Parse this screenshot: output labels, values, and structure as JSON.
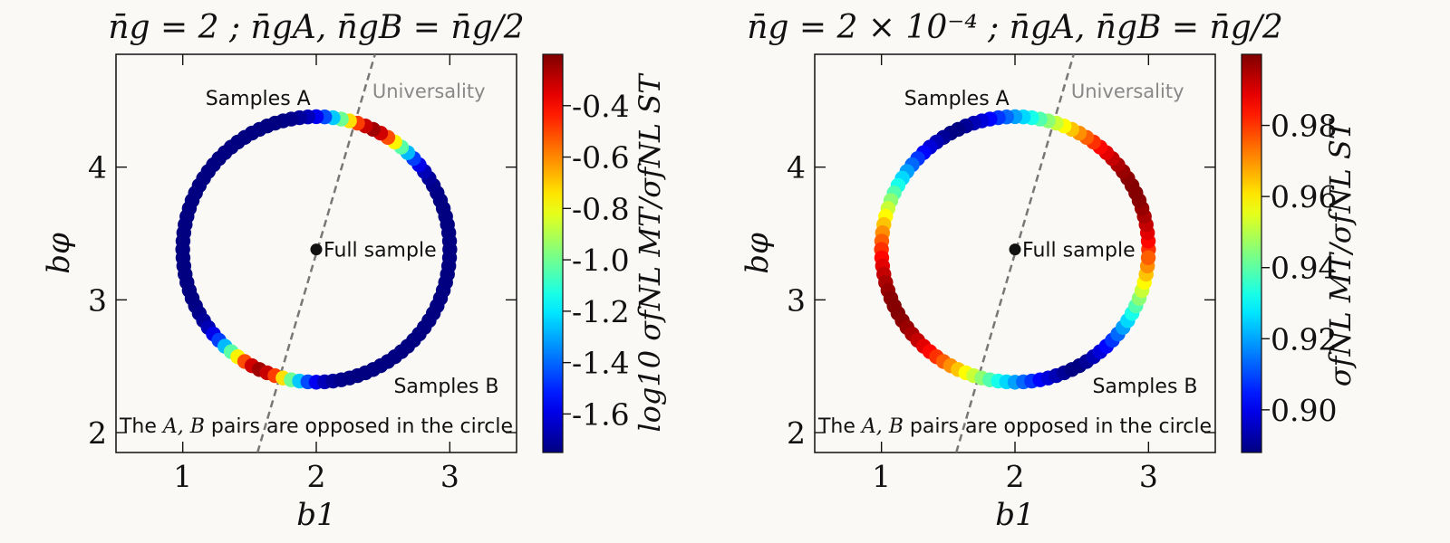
{
  "chart_data": [
    {
      "type": "scatter",
      "title": "n̄g = 2 ; n̄gA, n̄gB = n̄g/2",
      "xlabel": "b1",
      "ylabel": "bφ",
      "xlim": [
        0.5,
        3.5
      ],
      "ylim": [
        1.85,
        4.85
      ],
      "xticks": [
        1,
        2,
        3
      ],
      "yticks": [
        2,
        3,
        4
      ],
      "circle": {
        "center": [
          2.0,
          3.38
        ],
        "radius": 1.0,
        "n_points": 100
      },
      "universality_line": {
        "x": [
          1.56,
          2.44
        ],
        "y": [
          1.85,
          4.85
        ],
        "label": "Universality"
      },
      "full_sample": {
        "x": 2.0,
        "y": 3.38,
        "label": "Full sample"
      },
      "annotations": {
        "samples_a": "Samples A",
        "samples_b": "Samples B",
        "footnote_pre": "The ",
        "footnote_math": "A, B",
        "footnote_post": " pairs are opposed in the circle"
      },
      "colorbar": {
        "label": "log10 σfNL MT/σfNL ST",
        "min": -1.75,
        "max": -0.2,
        "ticks": [
          "-0.4",
          "-0.6",
          "-0.8",
          "-1.0",
          "-1.2",
          "-1.4",
          "-1.6"
        ],
        "tick_values": [
          -0.4,
          -0.6,
          -0.8,
          -1.0,
          -1.2,
          -1.4,
          -1.6
        ]
      },
      "color_profile": {
        "kind": "peak",
        "peak_angle_deg": 65,
        "base": -1.75,
        "peak": -0.25,
        "width_deg": 12
      }
    },
    {
      "type": "scatter",
      "title": "n̄g = 2 × 10⁻⁴ ; n̄gA, n̄gB = n̄g/2",
      "xlabel": "b1",
      "ylabel": "bφ",
      "xlim": [
        0.5,
        3.5
      ],
      "ylim": [
        1.85,
        4.85
      ],
      "xticks": [
        1,
        2,
        3
      ],
      "yticks": [
        2,
        3,
        4
      ],
      "circle": {
        "center": [
          2.0,
          3.38
        ],
        "radius": 1.0,
        "n_points": 100
      },
      "universality_line": {
        "x": [
          1.56,
          2.44
        ],
        "y": [
          1.85,
          4.85
        ],
        "label": "Universality"
      },
      "full_sample": {
        "x": 2.0,
        "y": 3.38,
        "label": "Full sample"
      },
      "annotations": {
        "samples_a": "Samples A",
        "samples_b": "Samples B",
        "footnote_pre": "The ",
        "footnote_math": "A, B",
        "footnote_post": " pairs are opposed in the circle"
      },
      "colorbar": {
        "label": "σfNL MT/σfNL ST",
        "min": 0.888,
        "max": 1.0,
        "ticks": [
          "0.98",
          "0.96",
          "0.94",
          "0.92",
          "0.90"
        ],
        "tick_values": [
          0.98,
          0.96,
          0.94,
          0.92,
          0.9
        ]
      },
      "color_profile": {
        "kind": "dipole",
        "peak_angle_deg": 27,
        "base": 0.888,
        "peak": 0.9995
      }
    }
  ]
}
